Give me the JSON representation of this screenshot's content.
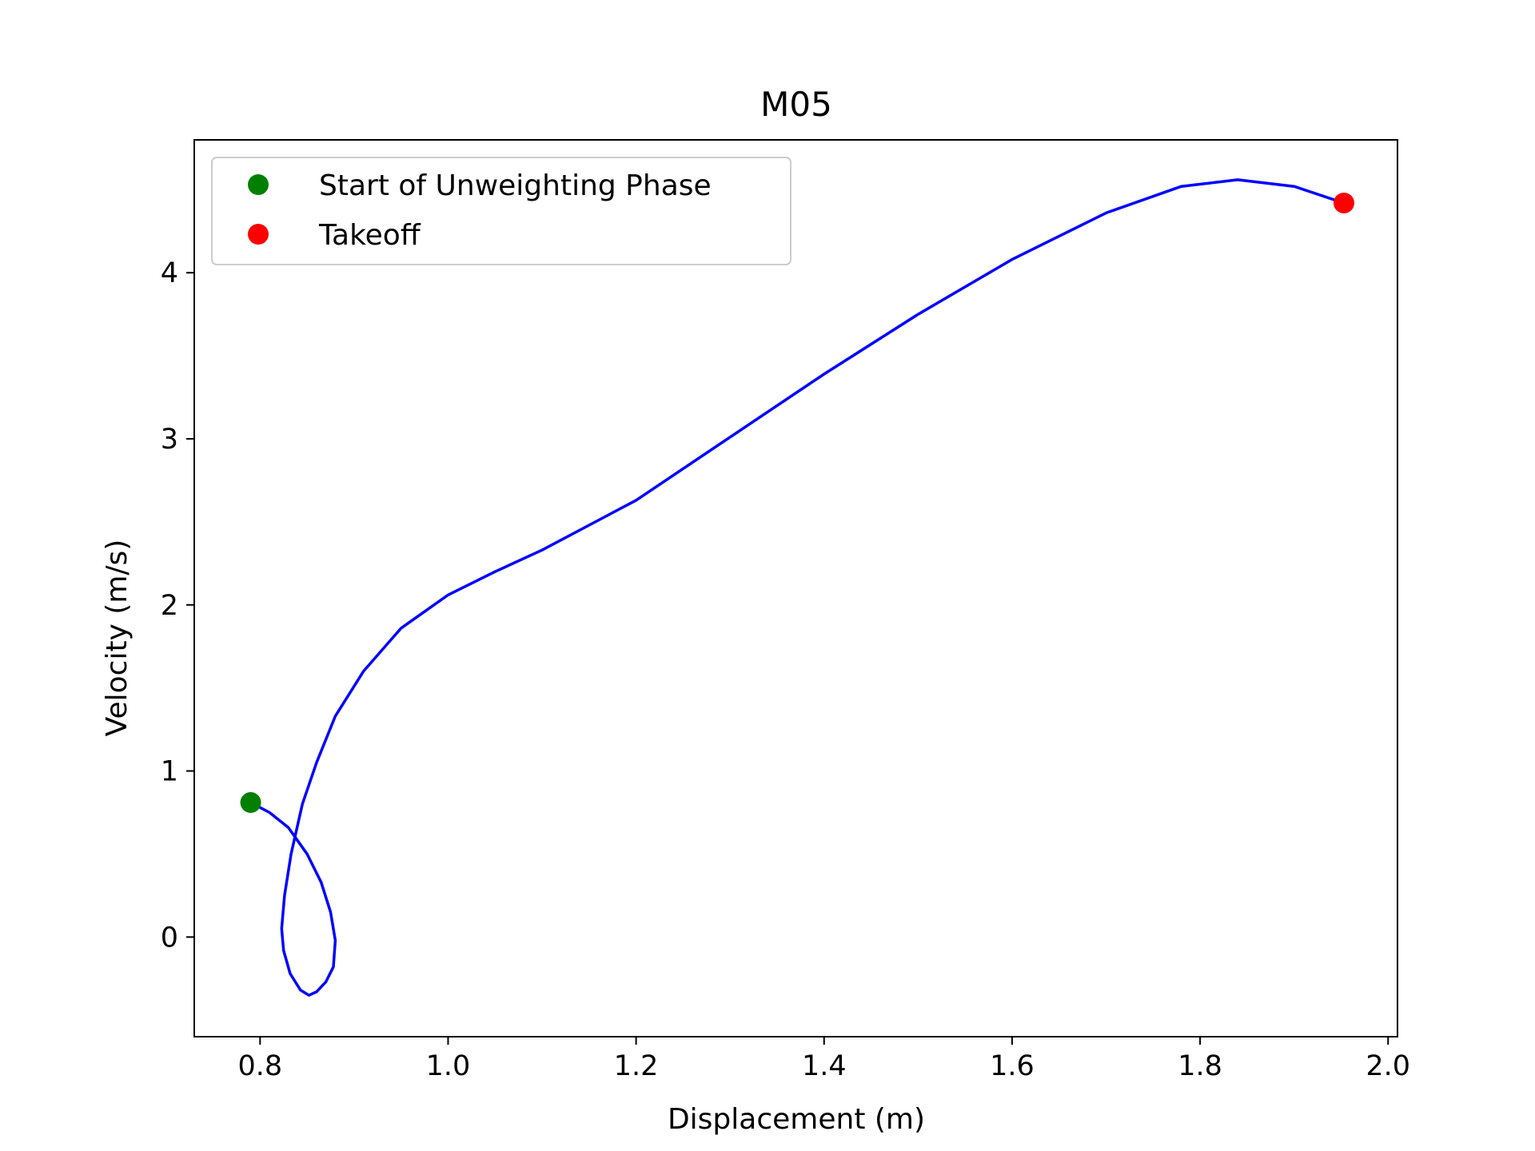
{
  "chart_data": {
    "type": "line",
    "title": "M05",
    "xlabel": "Displacement (m)",
    "ylabel": "Velocity (m/s)",
    "xlim": [
      0.73,
      2.01
    ],
    "ylim": [
      -0.6,
      4.8
    ],
    "xticks": [
      0.8,
      1.0,
      1.2,
      1.4,
      1.6,
      1.8,
      2.0
    ],
    "xtick_labels": [
      "0.8",
      "1.0",
      "1.2",
      "1.4",
      "1.6",
      "1.8",
      "2.0"
    ],
    "yticks": [
      0,
      1,
      2,
      3,
      4
    ],
    "ytick_labels": [
      "0",
      "1",
      "2",
      "3",
      "4"
    ],
    "grid": false,
    "legend_position": "upper-left",
    "series": [
      {
        "color": "#0000ff",
        "x": [
          0.79,
          0.81,
          0.83,
          0.85,
          0.865,
          0.875,
          0.88,
          0.878,
          0.87,
          0.86,
          0.852,
          0.843,
          0.832,
          0.825,
          0.823,
          0.826,
          0.833,
          0.845,
          0.86,
          0.88,
          0.91,
          0.95,
          1.0,
          1.05,
          1.1,
          1.2,
          1.3,
          1.4,
          1.5,
          1.6,
          1.7,
          1.78,
          1.84,
          1.9,
          1.953
        ],
        "y": [
          0.81,
          0.75,
          0.66,
          0.5,
          0.33,
          0.15,
          -0.02,
          -0.18,
          -0.27,
          -0.33,
          -0.35,
          -0.32,
          -0.22,
          -0.08,
          0.05,
          0.25,
          0.5,
          0.8,
          1.05,
          1.33,
          1.6,
          1.86,
          2.06,
          2.2,
          2.33,
          2.63,
          3.01,
          3.39,
          3.75,
          4.08,
          4.36,
          4.52,
          4.56,
          4.52,
          4.42
        ]
      }
    ],
    "markers": [
      {
        "label": "Start of Unweighting Phase",
        "x": 0.79,
        "y": 0.81,
        "color": "#008000"
      },
      {
        "label": "Takeoff",
        "x": 1.953,
        "y": 4.42,
        "color": "#ff0000"
      }
    ]
  }
}
